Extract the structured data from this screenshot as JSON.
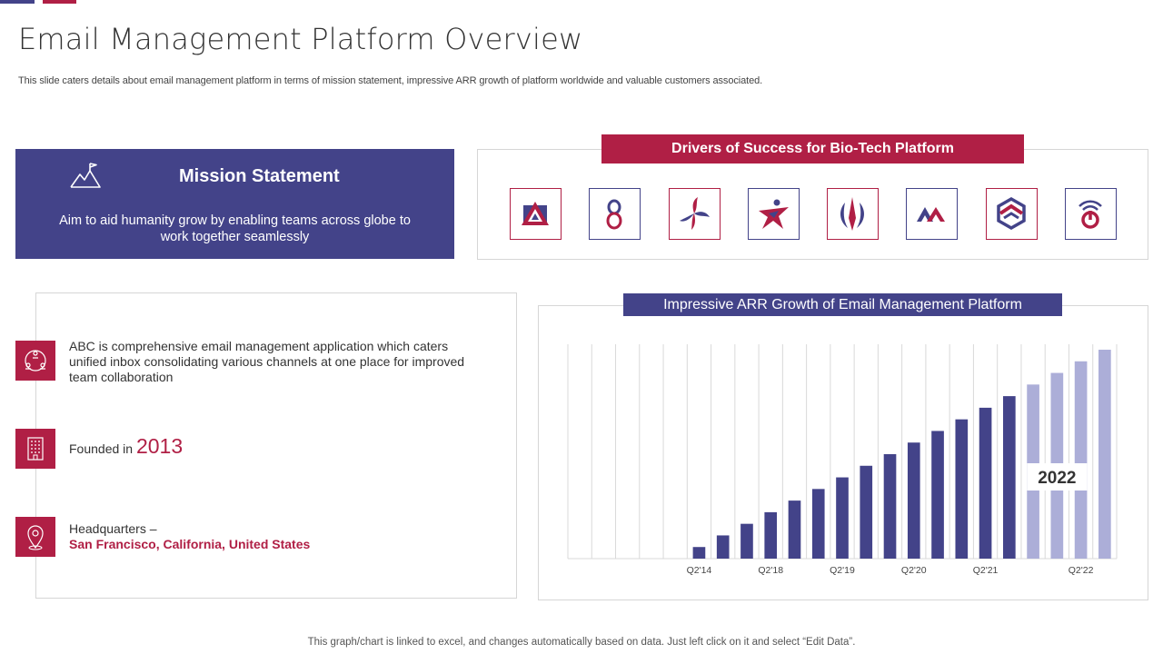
{
  "header": {
    "title": "Email Management Platform Overview",
    "subtitle": "This slide caters details about email management platform in terms of mission statement, impressive ARR growth of platform worldwide and valuable customers associated."
  },
  "mission": {
    "title": "Mission Statement",
    "text": "Aim to aid humanity grow by enabling teams across globe to work together seamlessly",
    "icon": "mountain-flag-icon"
  },
  "drivers": {
    "title": "Drivers of Success for Bio-Tech Platform",
    "logos": [
      "triangle-logo",
      "figure-eight-logo",
      "triple-swirl-logo",
      "star-figure-logo",
      "wing-blade-logo",
      "double-peak-logo",
      "hexagon-chevron-logo",
      "power-wave-logo"
    ]
  },
  "info": {
    "description": "ABC is comprehensive email management application which caters unified inbox consolidating various channels at one place for improved team collaboration",
    "founded_label": "Founded in",
    "founded_year": "2013",
    "hq_label": "Headquarters –",
    "hq_value": "San Francisco, California, United States",
    "icons": [
      "team-network-icon",
      "building-icon",
      "location-pin-icon"
    ]
  },
  "chart_data": {
    "type": "bar",
    "title": "Impressive ARR Growth of Email Management Platform",
    "categories": [
      "",
      "",
      "",
      "",
      "",
      "Q2'14",
      "",
      "",
      "Q2'18",
      "",
      "",
      "Q2'19",
      "",
      "",
      "Q2'20",
      "",
      "",
      "Q2'21",
      "",
      "",
      "",
      "Q2'22",
      ""
    ],
    "values": [
      0,
      0,
      0,
      0,
      0,
      1,
      2,
      3,
      4,
      5,
      6,
      7,
      8,
      9,
      10,
      11,
      12,
      13,
      14,
      15,
      16,
      17,
      18
    ],
    "highlight_from_index": 19,
    "highlight_label": "2022",
    "ylim": [
      0,
      18
    ],
    "grid": true,
    "colors": {
      "bar": "#434389",
      "highlight": "#acaed8",
      "grid": "#d9d9d9"
    }
  },
  "footnote": "This graph/chart is linked to excel, and changes automatically based on data. Just left click on it and select “Edit Data”.",
  "colors": {
    "primary": "#434389",
    "accent": "#b01f45"
  }
}
